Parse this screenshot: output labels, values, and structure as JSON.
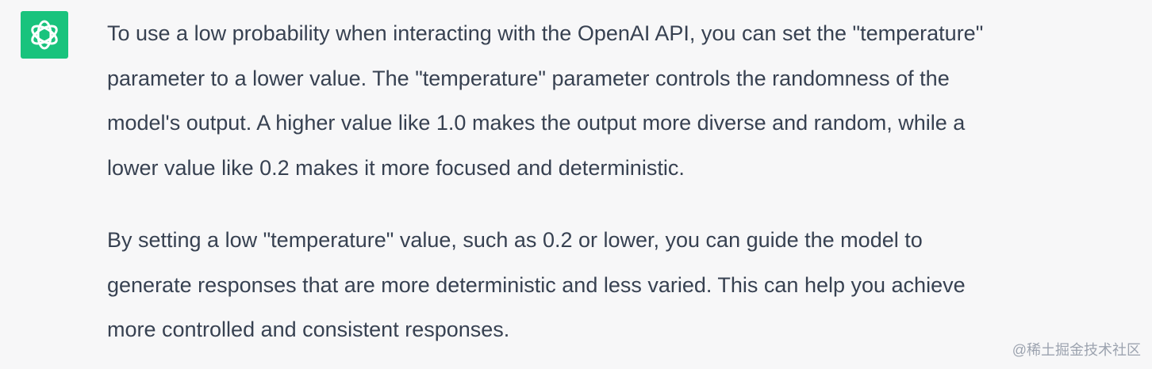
{
  "message": {
    "paragraphs": [
      {
        "lines": [
          "To use a low probability when interacting with the OpenAI API, you can set the \"temperature\"",
          "parameter to a lower value. The \"temperature\" parameter controls the randomness of the",
          "model's output. A higher value like 1.0 makes the output more diverse and random, while a",
          "lower value like 0.2 makes it more focused and deterministic."
        ]
      },
      {
        "lines": [
          "By setting a low \"temperature\" value, such as 0.2 or lower, you can guide the model to",
          "generate responses that are more deterministic and less varied. This can help you achieve",
          "more controlled and consistent responses."
        ]
      }
    ]
  },
  "watermark": "@稀土掘金技术社区"
}
